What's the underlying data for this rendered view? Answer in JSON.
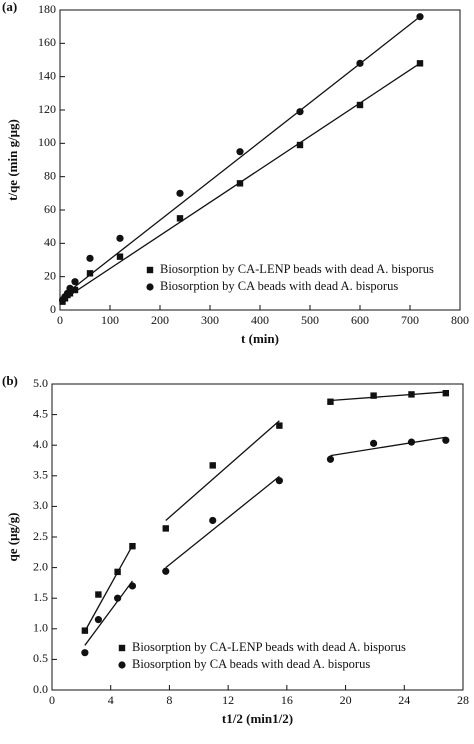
{
  "chart_data": [
    {
      "type": "scatter",
      "panel_label": "(a)",
      "x_label": "t (min)",
      "y_label": "t/qe (min g/μg)",
      "x": [
        5,
        10,
        15,
        20,
        30,
        60,
        120,
        240,
        360,
        480,
        600,
        720
      ],
      "xlim": [
        0,
        800
      ],
      "xticks": [
        0,
        100,
        200,
        300,
        400,
        500,
        600,
        700,
        800
      ],
      "ylim": [
        0,
        180
      ],
      "yticks": [
        0,
        20,
        40,
        60,
        80,
        100,
        120,
        140,
        160,
        180
      ],
      "series": [
        {
          "name": "Biosorption by CA-LENP beads with dead A. bisporus",
          "color": "#111111",
          "marker": "square",
          "values": [
            5,
            7,
            9,
            10,
            12,
            22,
            32,
            55,
            76,
            99,
            123,
            148
          ],
          "fit": [
            [
              0,
              5,
              720,
              148
            ]
          ]
        },
        {
          "name": "Biosorption by CA beads with dead A. bisporus",
          "color": "#111111",
          "marker": "circle",
          "values": [
            6,
            8,
            10,
            13,
            17,
            31,
            43,
            70,
            95,
            119,
            148,
            176
          ],
          "fit": [
            [
              0,
              7,
              720,
              176
            ]
          ]
        }
      ]
    },
    {
      "type": "scatter",
      "panel_label": "(b)",
      "x_label": "t1/2 (min1/2)",
      "y_label": "qe (μg/g)",
      "x": [
        2.24,
        3.16,
        4.47,
        5.48,
        7.75,
        10.95,
        15.49,
        18.97,
        21.91,
        24.49,
        26.83
      ],
      "xlim": [
        0,
        28
      ],
      "xticks": [
        0,
        4,
        8,
        12,
        16,
        20,
        24,
        28
      ],
      "ylim": [
        0,
        5
      ],
      "yticks": [
        {
          "value": 0,
          "label": "0.0"
        },
        0.5,
        {
          "value": 1,
          "label": "1.0"
        },
        1.5,
        {
          "value": 2,
          "label": "2.0"
        },
        2.5,
        {
          "value": 3,
          "label": "3.0"
        },
        3.5,
        {
          "value": 4,
          "label": "4.0"
        },
        4.5,
        {
          "value": 5,
          "label": "5.0"
        }
      ],
      "series": [
        {
          "name": "Biosorption by CA-LENP beads with dead A. bisporus",
          "color": "#111111",
          "marker": "square",
          "values": [
            0.97,
            1.56,
            1.93,
            2.35,
            2.64,
            3.67,
            4.32,
            4.71,
            4.81,
            4.83,
            4.85
          ],
          "fit": [
            [
              2.24,
              0.96,
              5.48,
              2.36
            ],
            [
              7.75,
              2.77,
              15.49,
              4.4
            ],
            [
              18.97,
              4.73,
              26.83,
              4.87
            ]
          ]
        },
        {
          "name": "Biosorption by CA beads with dead A. bisporus",
          "color": "#111111",
          "marker": "circle",
          "values": [
            0.61,
            1.15,
            1.5,
            1.7,
            1.94,
            2.77,
            3.42,
            3.77,
            4.03,
            4.05,
            4.08
          ],
          "fit": [
            [
              2.24,
              0.73,
              5.48,
              1.78
            ],
            [
              7.75,
              2.0,
              15.49,
              3.49
            ],
            [
              18.97,
              3.83,
              26.83,
              4.13
            ]
          ]
        }
      ]
    }
  ]
}
